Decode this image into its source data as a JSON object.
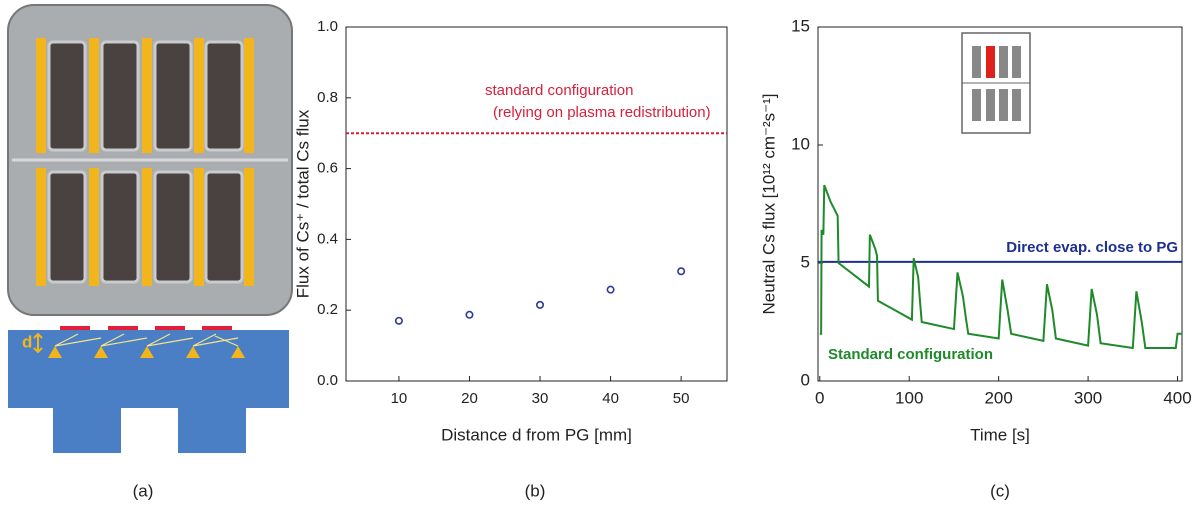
{
  "panel_a": {
    "panel_label": "(a)",
    "diagram_label": "d"
  },
  "chart_data": [
    {
      "type": "scatter",
      "panel_label": "(b)",
      "x_label": "Distance d from PG [mm]",
      "y_label": "Flux of Cs⁺ / total Cs flux",
      "x": [
        10,
        20,
        30,
        40,
        50
      ],
      "values": [
        0.17,
        0.187,
        0.215,
        0.258,
        0.31
      ],
      "color": "#2b3a9a",
      "xlim": [
        2.5,
        56.5
      ],
      "ylim": [
        0,
        1
      ],
      "xticks": [
        10,
        20,
        30,
        40,
        50
      ],
      "yticks": [
        {
          "value": 0,
          "label": "0.0"
        },
        {
          "value": 0.2,
          "label": "0.2"
        },
        {
          "value": 0.4,
          "label": "0.4"
        },
        {
          "value": 0.6,
          "label": "0.6"
        },
        {
          "value": 0.8,
          "label": "0.8"
        },
        {
          "value": 1,
          "label": "1.0"
        }
      ],
      "reference_line": {
        "value": 0.7,
        "color": "#d8203a",
        "label": [
          "standard configuration",
          "(relying on plasma redistribution)"
        ]
      }
    },
    {
      "type": "line",
      "panel_label": "(c)",
      "x_label": "Time [s]",
      "y_label": "Neutral Cs flux [10¹² cm⁻²s⁻¹]",
      "series": [
        {
          "name": "Standard configuration",
          "color": "#1e8a2a",
          "x": [
            0,
            1.5,
            2,
            4,
            5,
            12,
            20,
            21,
            55,
            56,
            62,
            64,
            65,
            103,
            105,
            110,
            112,
            114,
            150,
            154,
            160,
            164,
            166,
            200,
            204,
            210,
            214,
            250,
            254,
            260,
            264,
            300,
            304,
            310,
            314,
            350,
            354,
            360,
            364,
            398,
            400,
            405
          ],
          "values": [
            2,
            2,
            6.4,
            6.2,
            8.3,
            7.6,
            7.0,
            5.0,
            4.0,
            6.2,
            5.6,
            5.3,
            3.4,
            2.6,
            5.2,
            4.4,
            3.4,
            2.5,
            2.2,
            4.6,
            3.6,
            2.5,
            2.0,
            1.8,
            4.3,
            3.0,
            2.0,
            1.7,
            4.1,
            3.0,
            1.8,
            1.5,
            3.9,
            2.8,
            1.6,
            1.4,
            3.8,
            2.5,
            1.4,
            1.4,
            2.0,
            2.0
          ]
        }
      ],
      "xlim": [
        -2,
        405
      ],
      "ylim": [
        0,
        15
      ],
      "xticks": [
        0,
        100,
        200,
        300,
        400
      ],
      "yticks": [
        0,
        5,
        10,
        15
      ],
      "reference_line": {
        "value": 5.05,
        "color": "#1f2f8f",
        "label": "Direct evap. close to PG"
      }
    }
  ]
}
